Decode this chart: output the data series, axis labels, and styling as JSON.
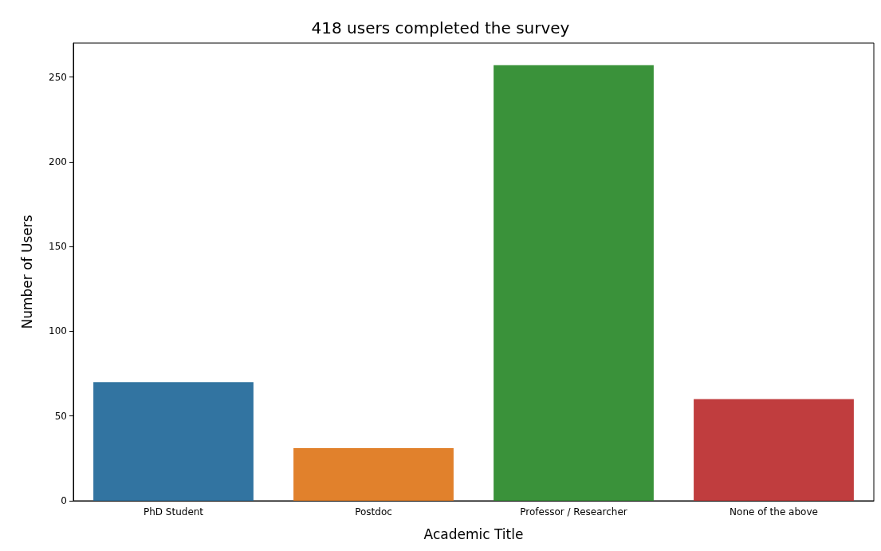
{
  "chart_data": {
    "type": "bar",
    "title": "418 users completed the survey",
    "xlabel": "Academic Title",
    "ylabel": "Number of Users",
    "categories": [
      "PhD Student",
      "Postdoc",
      "Professor / Researcher",
      "None of the above"
    ],
    "values": [
      70,
      31,
      257,
      60
    ],
    "colors": [
      "#3274a1",
      "#e1812c",
      "#3a923a",
      "#c03d3e"
    ],
    "ylim": [
      0,
      270
    ],
    "yticks": [
      0,
      50,
      100,
      150,
      200,
      250
    ],
    "grid": false
  }
}
